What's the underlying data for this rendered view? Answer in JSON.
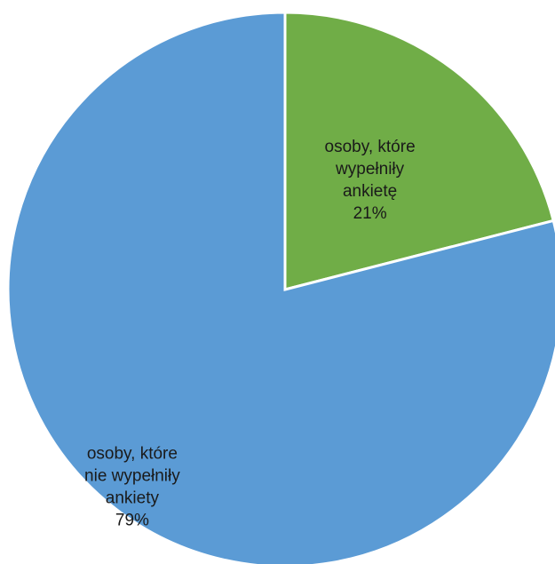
{
  "chart_data": {
    "type": "pie",
    "title": "",
    "slices": [
      {
        "label_lines": [
          "osoby, które",
          "wypełniły",
          "ankietę"
        ],
        "value": 21,
        "value_label": "21%",
        "color": "#70AD47"
      },
      {
        "label_lines": [
          "osoby, które",
          "nie wypełniły",
          "ankiety"
        ],
        "value": 79,
        "value_label": "79%",
        "color": "#5B9BD5"
      }
    ],
    "start_angle_deg": 0,
    "direction": "clockwise",
    "legend": "none",
    "data_labels": "inside, category name and percentage"
  }
}
